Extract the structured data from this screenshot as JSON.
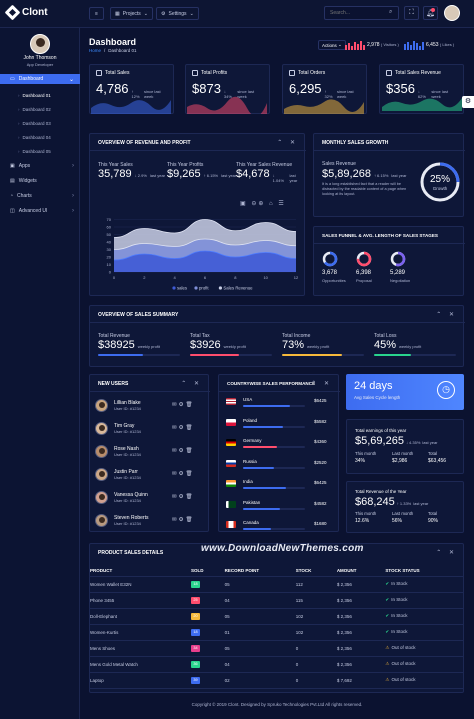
{
  "app": {
    "brand": "Clont"
  },
  "topbar": {
    "projects_label": "Projects",
    "settings_label": "Settings",
    "search_placeholder": "Search..."
  },
  "user": {
    "name": "John Thomson",
    "role": "App Developer"
  },
  "sidebar": {
    "items": [
      {
        "label": "Dashboard"
      },
      {
        "label": "Apps"
      },
      {
        "label": "Widgets"
      },
      {
        "label": "Charts"
      },
      {
        "label": "Advanced UI"
      }
    ],
    "sub": [
      "Dashboard 01",
      "Dashboard 02",
      "Dashboard 03",
      "Dashboard 04",
      "Dashboard 05"
    ]
  },
  "page": {
    "title": "Dashboard",
    "crumb_home": "Home",
    "crumb_sep": "/",
    "crumb_current": "Dashboard 01",
    "actions_label": "Actions",
    "visitors_value": "2,978",
    "visitors_label": "( Visitors )",
    "likes_value": "6,453",
    "likes_label": "( Likes )"
  },
  "stats": [
    {
      "title": "Total Sales",
      "value": "4,786",
      "change": "↑ 12%",
      "note": "since last week",
      "dir": "up"
    },
    {
      "title": "Total Profits",
      "value": "$873",
      "change": "↓ 34%",
      "note": "since last week",
      "dir": "down"
    },
    {
      "title": "Total Orders",
      "value": "6,295",
      "change": "↑ 32%",
      "note": "since last week",
      "dir": "up"
    },
    {
      "title": "Total Sales Revenue",
      "value": "$356",
      "change": "↓ 62%",
      "note": "since last week",
      "dir": "down"
    }
  ],
  "revenue": {
    "title": "OVERVIEW OF REVENUE AND PROFIT",
    "items": [
      {
        "label": "This Year Sales",
        "value": "35,789",
        "change": "↓ 2.9%",
        "note": "last year"
      },
      {
        "label": "This Year Profits",
        "value": "$9,265",
        "change": "↑ 6.15%",
        "note": "last year"
      },
      {
        "label": "This Year Sales Revenue",
        "value": "$4,678",
        "change": "↓ 1.04%",
        "note": "last year"
      }
    ],
    "legend": [
      "sales",
      "profit",
      "Sales Revenue"
    ]
  },
  "chart_data": {
    "type": "area",
    "x": [
      0,
      2,
      4,
      6,
      8,
      10,
      12
    ],
    "xlim": [
      0,
      12
    ],
    "ylim": [
      0,
      80
    ],
    "yticks": [
      0,
      10,
      20,
      30,
      40,
      50,
      60,
      70
    ],
    "xticks": [
      0,
      2,
      4,
      6,
      8,
      10,
      12
    ],
    "series": [
      {
        "name": "Sales Revenue",
        "values": [
          46,
          58,
          52,
          70,
          55,
          66,
          54
        ]
      },
      {
        "name": "profit",
        "values": [
          30,
          38,
          34,
          44,
          36,
          42,
          35
        ]
      },
      {
        "name": "sales",
        "values": [
          16,
          24,
          18,
          28,
          20,
          26,
          18
        ]
      }
    ],
    "colors": [
      "#c9cfe6",
      "#7e8fd9",
      "#3f5bd6"
    ]
  },
  "monthly": {
    "title": "MONTHLY SALES GROWTH",
    "label": "Sales Revenue",
    "value": "$5,89,268",
    "change": "↑ 6.15%",
    "note": "last year",
    "text": "It is a long established fact that a reader will be distracted by the readable content of a page when looking at its layout.",
    "growth_value": "25%",
    "growth_label": "Growth",
    "growth_fraction": 0.25
  },
  "funnel": {
    "title": "SALES FUNNEL & AVG. LENGTH OF SALES STAGES",
    "items": [
      {
        "value": "3,678",
        "label": "Opportunities",
        "color": "#3d6cf0",
        "fraction": 0.65
      },
      {
        "value": "6,398",
        "label": "Proposal",
        "color": "#ff4d6d",
        "fraction": 0.75
      },
      {
        "value": "5,289",
        "label": "Negotiation",
        "color": "#7b62f0",
        "fraction": 0.55
      }
    ]
  },
  "summary": {
    "title": "OVERVIEW OF SALES SUMMARY",
    "items": [
      {
        "label": "Total Revenue",
        "value": "$38925",
        "note": "weekly profit",
        "color": "#3d6cf0",
        "fraction": 0.55
      },
      {
        "label": "Total Tax",
        "value": "$3926",
        "note": "weekly profit",
        "color": "#ff4d6d",
        "fraction": 0.6
      },
      {
        "label": "Total Income",
        "value": "73%",
        "note": "weekly profit",
        "color": "#f6b93b",
        "fraction": 0.73
      },
      {
        "label": "Total Loss",
        "value": "45%",
        "note": "weekly profit",
        "color": "#29d48e",
        "fraction": 0.45
      }
    ]
  },
  "new_users": {
    "title": "NEW USERS",
    "users": [
      {
        "name": "Lillian Blake",
        "id": "User ID: #1234"
      },
      {
        "name": "Tim Gray",
        "id": "User ID: #1234"
      },
      {
        "name": "Rose Nash",
        "id": "User ID: #1234"
      },
      {
        "name": "Justin Parr",
        "id": "User ID: #1234"
      },
      {
        "name": "Vanessa Quinn",
        "id": "User ID: #1234"
      },
      {
        "name": "Steven Roberts",
        "id": "User ID: #1234"
      }
    ]
  },
  "countries": {
    "title": "COUNTRYWISE SALES PERFORMANCE",
    "items": [
      {
        "name": "USA",
        "value": "$6425",
        "fraction": 0.75
      },
      {
        "name": "Poland",
        "value": "$5582",
        "fraction": 0.65
      },
      {
        "name": "Germany",
        "value": "$4360",
        "fraction": 0.55
      },
      {
        "name": "Russia",
        "value": "$2520",
        "fraction": 0.5
      },
      {
        "name": "India",
        "value": "$6425",
        "fraction": 0.7
      },
      {
        "name": "Pakistan",
        "value": "$4582",
        "fraction": 0.6
      },
      {
        "name": "Canada",
        "value": "$1680",
        "fraction": 0.45
      }
    ]
  },
  "cycle": {
    "value": "24 days",
    "label": "Avg Sales Cycle length"
  },
  "earnings": {
    "label": "Total earnings of this year",
    "value": "$5,69,265",
    "change": "↓ 4.35%",
    "note": "last year",
    "cols": [
      {
        "label": "This month",
        "value": "34%"
      },
      {
        "label": "Last month",
        "value": "$2,986"
      },
      {
        "label": "Total",
        "value": "$63,456"
      }
    ]
  },
  "revenue_year": {
    "label": "Total Revenue of the Year",
    "value": "$68,245",
    "change": "↑ 1.33%",
    "note": "last year",
    "cols": [
      {
        "label": "This month",
        "value": "12.6%"
      },
      {
        "label": "Last month",
        "value": "56%"
      },
      {
        "label": "Total",
        "value": "90%"
      }
    ]
  },
  "products": {
    "title": "PRODUCT SALES DETAILS",
    "headers": [
      "PRODUCT",
      "SOLD",
      "RECORD POINT",
      "STOCK",
      "AMOUNT",
      "STOCK STATUS"
    ],
    "rows": [
      {
        "product": "Women Wallet E32N",
        "sold": "18",
        "record": "05",
        "stock": "112",
        "amount": "$ 2,356",
        "status": "In Stock",
        "color": "#29d48e",
        "ok": true
      },
      {
        "product": "Phone 3455",
        "sold": "25",
        "record": "04",
        "stock": "115",
        "amount": "$ 2,356",
        "status": "In Stock",
        "color": "#ff4d6d",
        "ok": true
      },
      {
        "product": "Doll-Elephant",
        "sold": "20",
        "record": "05",
        "stock": "102",
        "amount": "$ 2,356",
        "status": "In Stock",
        "color": "#f6b93b",
        "ok": true
      },
      {
        "product": "Women-Kurtis",
        "sold": "18",
        "record": "01",
        "stock": "102",
        "amount": "$ 2,356",
        "status": "In Stock",
        "color": "#3d6cf0",
        "ok": true
      },
      {
        "product": "Mens Shoes",
        "sold": "34",
        "record": "05",
        "stock": "0",
        "amount": "$ 2,356",
        "status": "Out of stock",
        "color": "#e83e8c",
        "ok": false
      },
      {
        "product": "Mens Gold Metal Watch",
        "sold": "36",
        "record": "04",
        "stock": "0",
        "amount": "$ 2,356",
        "status": "Out of stock",
        "color": "#29d48e",
        "ok": false
      },
      {
        "product": "Laptop",
        "sold": "39",
        "record": "02",
        "stock": "0",
        "amount": "$ 7,692",
        "status": "Out of stock",
        "color": "#3d6cf0",
        "ok": false
      }
    ]
  },
  "footer": {
    "text": "Copyright © 2019 Clont. Designed by Spruko Technologies Pvt.Ltd All rights reserved."
  },
  "watermark": {
    "text": "www.DownloadNewThemes.com"
  }
}
